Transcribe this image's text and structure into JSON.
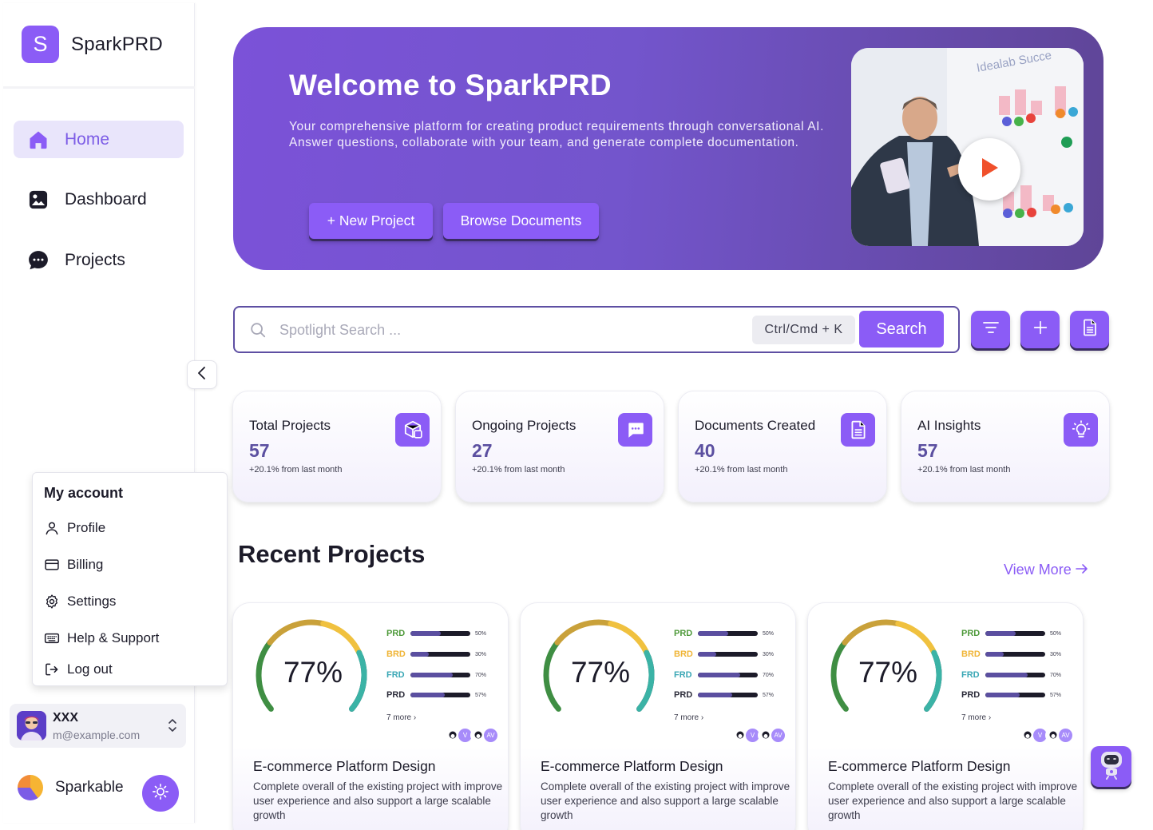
{
  "brand": {
    "logo_letter": "S",
    "name": "SparkPRD"
  },
  "nav": [
    {
      "label": "Home",
      "icon": "home-icon",
      "active": true
    },
    {
      "label": "Dashboard",
      "icon": "image-icon",
      "active": false
    },
    {
      "label": "Projects",
      "icon": "chat-icon",
      "active": false
    }
  ],
  "account_menu": {
    "title": "My account",
    "items": [
      {
        "label": "Profile",
        "icon": "user-icon"
      },
      {
        "label": "Billing",
        "icon": "credit-card-icon"
      },
      {
        "label": "Settings",
        "icon": "gear-icon"
      },
      {
        "label": "Help & Support",
        "icon": "keyboard-icon"
      },
      {
        "label": "Log out",
        "icon": "logout-icon"
      }
    ]
  },
  "user": {
    "name": "XXX",
    "email": "m@example.com"
  },
  "org": {
    "name": "Sparkable"
  },
  "hero": {
    "title": "Welcome to SparkPRD",
    "description": "Your comprehensive platform for creating product requirements through conversational AI. Answer questions, collaborate with your team, and generate complete documentation.",
    "new_project_label": "+ New Project",
    "browse_label": "Browse Documents",
    "video_sign": "Idealab Succe"
  },
  "search": {
    "placeholder": "Spotlight Search ...",
    "value": "",
    "shortcut": "Ctrl/Cmd + K",
    "button_label": "Search"
  },
  "stats": [
    {
      "title": "Total Projects",
      "value": "57",
      "sub": "+20.1% from last month",
      "icon": "cube-icon"
    },
    {
      "title": "Ongoing Projects",
      "value": "27",
      "sub": "+20.1% from last month",
      "icon": "message-icon"
    },
    {
      "title": "Documents Created",
      "value": "40",
      "sub": "+20.1% from last month",
      "icon": "document-icon"
    },
    {
      "title": "AI Insights",
      "value": "57",
      "sub": "+20.1% from last month",
      "icon": "bulb-icon"
    }
  ],
  "recent": {
    "title": "Recent Projects",
    "view_more": "View More"
  },
  "projects": [
    {
      "progress": "77%",
      "bars": [
        {
          "label": "PRD",
          "pct": "50%",
          "value": 50,
          "color": "#4f9a3b"
        },
        {
          "label": "BRD",
          "pct": "30%",
          "value": 30,
          "color": "#f0b537"
        },
        {
          "label": "FRD",
          "pct": "70%",
          "value": 70,
          "color": "#3aa7b5"
        },
        {
          "label": "PRD",
          "pct": "57%",
          "value": 57,
          "color": "#2c2c3a"
        }
      ],
      "more": "7 more",
      "avatars": [
        "",
        "V",
        "",
        "AV"
      ],
      "title": "E-commerce Platform Design",
      "description": "Complete overall of the existing project with improve user experience and also support a large scalable growth"
    },
    {
      "progress": "77%",
      "bars": [
        {
          "label": "PRD",
          "pct": "50%",
          "value": 50,
          "color": "#4f9a3b"
        },
        {
          "label": "BRD",
          "pct": "30%",
          "value": 30,
          "color": "#f0b537"
        },
        {
          "label": "FRD",
          "pct": "70%",
          "value": 70,
          "color": "#3aa7b5"
        },
        {
          "label": "PRD",
          "pct": "57%",
          "value": 57,
          "color": "#2c2c3a"
        }
      ],
      "more": "7 more",
      "avatars": [
        "",
        "V",
        "",
        "AV"
      ],
      "title": "E-commerce Platform Design",
      "description": "Complete overall of the existing project with improve user experience and also support a large scalable growth"
    },
    {
      "progress": "77%",
      "bars": [
        {
          "label": "PRD",
          "pct": "50%",
          "value": 50,
          "color": "#4f9a3b"
        },
        {
          "label": "BRD",
          "pct": "30%",
          "value": 30,
          "color": "#f0b537"
        },
        {
          "label": "FRD",
          "pct": "70%",
          "value": 70,
          "color": "#3aa7b5"
        },
        {
          "label": "PRD",
          "pct": "57%",
          "value": 57,
          "color": "#2c2c3a"
        }
      ],
      "more": "7 more",
      "avatars": [
        "",
        "V",
        "",
        "AV"
      ],
      "title": "E-commerce Platform Design",
      "description": "Complete overall of the existing project with improve user experience and also support a large scalable growth"
    }
  ],
  "colors": {
    "accent": "#8b5cf6",
    "hero_start": "#7b52d8",
    "hero_end": "#5f4597",
    "nav_active_bg": "#e9e5fb"
  }
}
